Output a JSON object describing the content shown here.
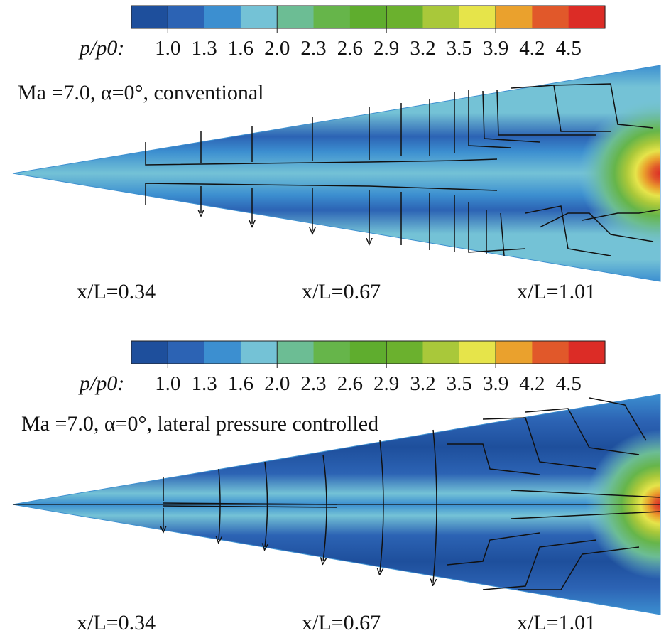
{
  "colorbar": {
    "variable_label": "p/p0:",
    "tick_labels": [
      "1.0",
      "1.3",
      "1.6",
      "2.0",
      "2.3",
      "2.6",
      "2.9",
      "3.2",
      "3.5",
      "3.9",
      "4.2",
      "4.5"
    ],
    "colors": [
      "#1e4f9c",
      "#2c63b4",
      "#3c8fd0",
      "#74c2d6",
      "#6cbd94",
      "#66b54a",
      "#5fad2e",
      "#6bb12e",
      "#a9c83a",
      "#e6e44a",
      "#eaa12d",
      "#e1582a",
      "#dc2c26"
    ]
  },
  "panels": [
    {
      "id": "conventional",
      "condition_label": "Ma =7.0, α=0°, conventional",
      "stations": [
        "x/L=0.34",
        "x/L=0.67",
        "x/L=1.01"
      ]
    },
    {
      "id": "lateral",
      "condition_label": "Ma =7.0, α=0°, lateral pressure controlled",
      "stations": [
        "x/L=0.34",
        "x/L=0.67",
        "x/L=1.01"
      ]
    }
  ]
}
